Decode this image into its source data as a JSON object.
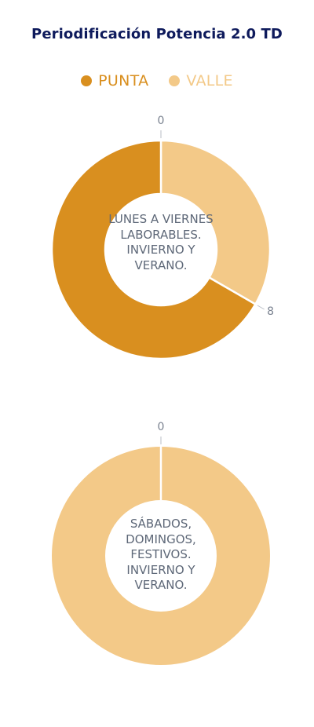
{
  "title": "Periodificación Potencia 2.0 TD",
  "colors": {
    "punta": "#d98f1f",
    "valle": "#f3c988",
    "tick": "#b9bec6",
    "tick_label": "#7a8290",
    "title": "#0e1a5c"
  },
  "legend": [
    {
      "label": "PUNTA",
      "color": "#d98f1f"
    },
    {
      "label": "VALLE",
      "color": "#f3c988"
    }
  ],
  "chart_data": [
    {
      "type": "pie",
      "donut": true,
      "center_label": "LUNES A VIERNES LABORABLES. INVIERNO Y VERANO.",
      "slices": [
        {
          "label": "VALLE",
          "value": 8
        },
        {
          "label": "PUNTA",
          "value": 16
        }
      ],
      "boundary_labels": [
        "0",
        "8"
      ],
      "total": 24
    },
    {
      "type": "pie",
      "donut": true,
      "center_label": "SÁBADOS, DOMINGOS, FESTIVOS. INVIERNO Y VERANO.",
      "slices": [
        {
          "label": "VALLE",
          "value": 24
        }
      ],
      "boundary_labels": [
        "0"
      ],
      "total": 24
    }
  ]
}
